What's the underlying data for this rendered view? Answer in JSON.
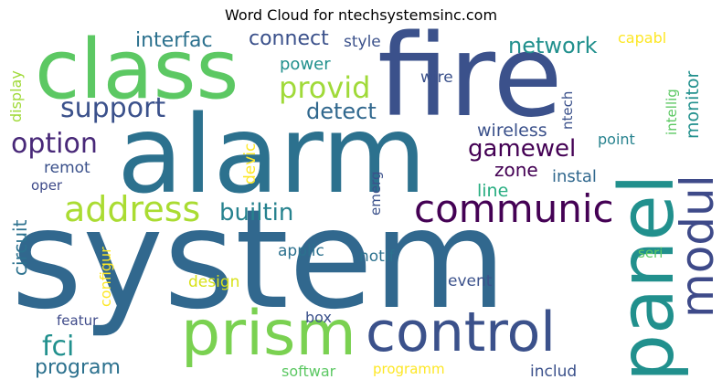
{
  "title": "Word Cloud for ntechsystemsinc.com",
  "words": {
    "system": "system",
    "alarm": "alarm",
    "fire": "fire",
    "class": "class",
    "panel": "panel",
    "prism": "prism",
    "control": "control",
    "modul": "modul",
    "communic": "communic",
    "address": "address",
    "provid": "provid",
    "support": "support",
    "option": "option",
    "network": "network",
    "gamewel": "gamewel",
    "detect": "detect",
    "connect": "connect",
    "interfac": "interfac",
    "builtin": "builtin",
    "fci": "fci",
    "program": "program",
    "wireless": "wireless",
    "zone": "zone",
    "instal": "instal",
    "line": "line",
    "power": "power",
    "style": "style",
    "wire": "wire",
    "capabl": "capabl",
    "ntech": "ntech",
    "intellig": "intellig",
    "monitor": "monitor",
    "point": "point",
    "display": "display",
    "remot": "remot",
    "oper": "oper",
    "circuit": "circuit",
    "devic": "devic",
    "emerg": "emerg",
    "configur": "configur",
    "applic": "applic",
    "notif": "notif",
    "seri": "seri",
    "design": "design",
    "event": "event",
    "featur": "featur",
    "box": "box",
    "softwar": "softwar",
    "programm": "programm",
    "includ": "includ"
  },
  "colors": {
    "dark_purple": "#440154",
    "indigo": "#472c7a",
    "slate": "#3b518b",
    "steel": "#2c718e",
    "teal": "#21908d",
    "green_teal": "#27ad81",
    "green": "#5cc863",
    "lime": "#aadc32",
    "yellow": "#fde725"
  }
}
